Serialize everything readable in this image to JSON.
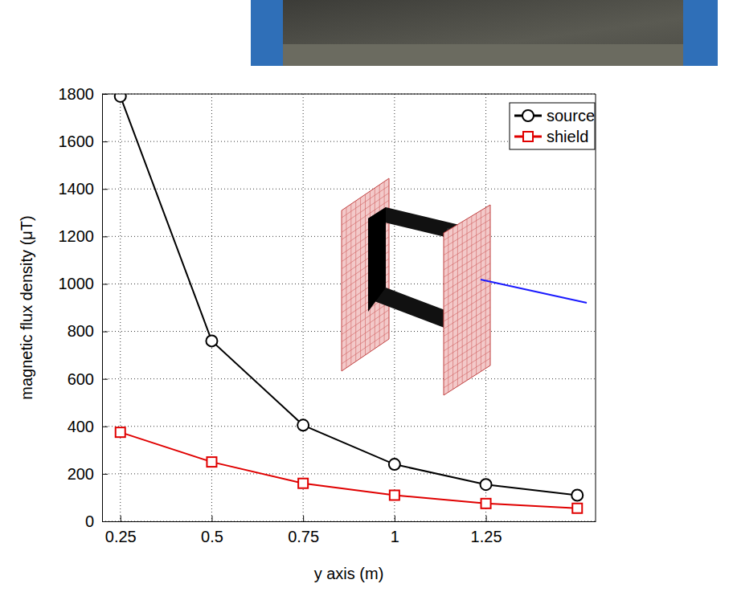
{
  "chart_data": {
    "type": "line",
    "x_label": "y axis (m)",
    "y_label": "magnetic flux density (μT)",
    "x": [
      0.25,
      0.5,
      0.75,
      1,
      1.25,
      1.5
    ],
    "series": [
      {
        "name": "source",
        "color": "#000000",
        "marker": "circle",
        "line_style": "solid",
        "values": [
          1790,
          760,
          405,
          240,
          155,
          110
        ]
      },
      {
        "name": "shield",
        "color": "#e00000",
        "marker": "square",
        "line_style": "solid",
        "values": [
          375,
          250,
          160,
          110,
          75,
          55
        ]
      }
    ],
    "xlim": [
      0.2,
      1.55
    ],
    "xticks": [
      0.25,
      0.5,
      0.75,
      1,
      1.25
    ],
    "ylim": [
      0,
      1800
    ],
    "yticks": [
      0,
      200,
      400,
      600,
      800,
      1000,
      1200,
      1400,
      1600,
      1800
    ],
    "grid": true,
    "legend": "upper right"
  }
}
